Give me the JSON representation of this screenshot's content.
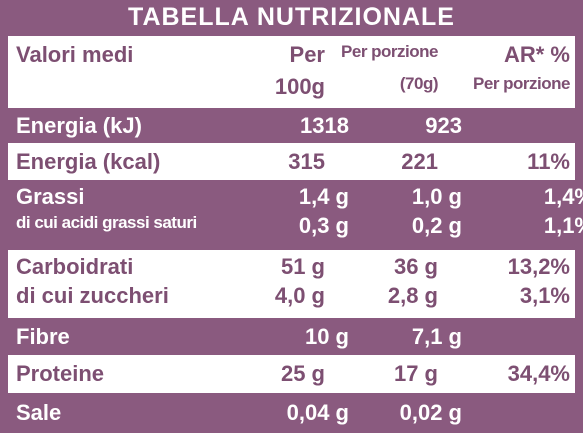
{
  "header": {
    "title": "TABELLA NUTRIZIONALE"
  },
  "table": {
    "columns": [
      [
        "Valori medi"
      ],
      [
        "Per",
        "100g"
      ],
      [
        "Per porzione",
        "(70g)"
      ],
      [
        "AR* %",
        "Per porzione"
      ]
    ],
    "rows": [
      [
        [
          "Energia (kJ)"
        ],
        [
          "1318"
        ],
        [
          "923"
        ],
        []
      ],
      [
        [
          "Energia (kcal)"
        ],
        [
          "315"
        ],
        [
          "221"
        ],
        [
          "11%"
        ]
      ],
      [
        [
          "Grassi",
          "di cui acidi grassi saturi"
        ],
        [
          "1,4 g",
          "0,3 g"
        ],
        [
          "1,0 g",
          "0,2 g"
        ],
        [
          "1,4%",
          "1,1%"
        ]
      ],
      [
        [
          "Carboidrati",
          "di cui zuccheri"
        ],
        [
          "51 g",
          "4,0 g"
        ],
        [
          "36 g",
          "2,8 g"
        ],
        [
          "13,2%",
          "3,1%"
        ]
      ],
      [
        [
          "Fibre"
        ],
        [
          "10 g"
        ],
        [
          "7,1 g"
        ],
        []
      ],
      [
        [
          "Proteine"
        ],
        [
          "25 g"
        ],
        [
          "17 g"
        ],
        [
          "34,4%"
        ]
      ],
      [
        [
          "Sale"
        ],
        [
          "0,04 g"
        ],
        [
          "0,02 g"
        ],
        []
      ]
    ]
  }
}
